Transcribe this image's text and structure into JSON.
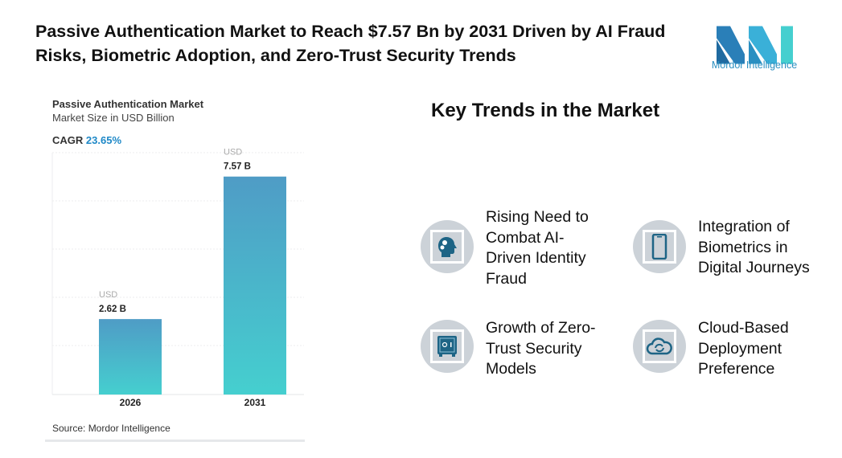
{
  "header": {
    "title": "Passive Authentication Market to Reach $7.57 Bn by 2031 Driven by AI Fraud Risks, Biometric Adoption, and Zero-Trust Security Trends",
    "logo_text": "Mordor Intelligence"
  },
  "chart_data": {
    "type": "bar",
    "title": "Passive Authentication Market",
    "subtitle": "Market Size in USD Billion",
    "cagr_label": "CAGR",
    "cagr_value": "23.65%",
    "categories": [
      "2026",
      "2031"
    ],
    "values": [
      2.62,
      7.57
    ],
    "data_labels": [
      {
        "unit": "USD",
        "value": "2.62 B"
      },
      {
        "unit": "USD",
        "value": "7.57 B"
      }
    ],
    "ylim": [
      0,
      8.4
    ],
    "grid": true,
    "colors": {
      "bar_top": "#4f9cc6",
      "bar_bottom": "#45cfcf"
    },
    "source": "Source: Mordor Intelligence"
  },
  "trends": {
    "title": "Key Trends in the Market",
    "items": [
      {
        "label": "Rising Need to Combat AI-Driven Identity Fraud",
        "lines": [
          "Rising Need to",
          "Combat AI-",
          "Driven Identity",
          "Fraud"
        ],
        "icon": "head-gears-icon"
      },
      {
        "label": "Integration of Biometrics in Digital Journeys",
        "lines": [
          "Integration of",
          "Biometrics in",
          "Digital Journeys"
        ],
        "icon": "smartphone-icon"
      },
      {
        "label": "Growth of Zero-Trust Security Models",
        "lines": [
          "Growth of Zero-",
          "Trust Security",
          "Models"
        ],
        "icon": "safe-icon"
      },
      {
        "label": "Cloud-Based Deployment Preference",
        "lines": [
          "Cloud-Based",
          "Deployment",
          "Preference"
        ],
        "icon": "cloud-sync-icon"
      }
    ]
  }
}
